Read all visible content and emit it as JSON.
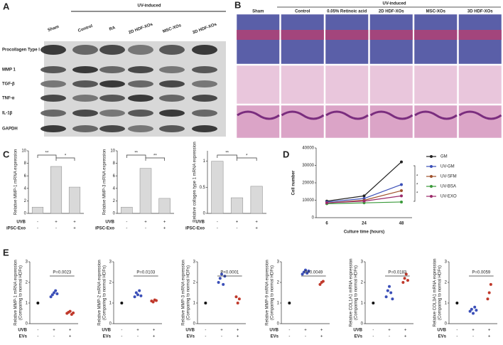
{
  "letters": [
    "A",
    "B",
    "C",
    "D",
    "E"
  ],
  "panel_a": {
    "group_label": "UV-induced",
    "columns": [
      "Sham",
      "Control",
      "RA",
      "2D HDF-XOs",
      "MSC-XOs",
      "3D HDF-XOs"
    ],
    "rows": [
      "Procollagen Type I",
      "MMP 1",
      "TGF-β",
      "TNF-α",
      "IL-1β",
      "GAPDH"
    ]
  },
  "panel_b": {
    "group_label": "UV-induced",
    "columns": [
      "Sham",
      "Control",
      "0.05% Retinoic acid",
      "2D HDF-XOs",
      "MSC-XOs",
      "3D HDF-XOs"
    ]
  },
  "chart_data": [
    {
      "type": "bar",
      "ylabel": "Relative MMP-1 mRNA expression",
      "values": [
        1,
        7.5,
        4.2
      ],
      "color": "#d9d9d9",
      "ylim": [
        0,
        10
      ],
      "yticks": [
        0,
        2,
        4,
        6,
        8,
        10
      ],
      "significance": [
        "**",
        "*"
      ],
      "rows": [
        {
          "label": "UVB",
          "signs": [
            "-",
            "+",
            "+"
          ]
        },
        {
          "label": "iPSC-Exo",
          "signs": [
            "-",
            "-",
            "+"
          ]
        }
      ]
    },
    {
      "type": "bar",
      "ylabel": "Relative MMP-3 mRNA expression",
      "values": [
        1,
        7.2,
        2.4
      ],
      "color": "#d9d9d9",
      "ylim": [
        0,
        10
      ],
      "yticks": [
        0,
        2,
        4,
        6,
        8,
        10
      ],
      "significance": [
        "**",
        "**"
      ],
      "rows": [
        {
          "label": "UVB",
          "signs": [
            "-",
            "+",
            "+"
          ]
        },
        {
          "label": "iPSC-Exo",
          "signs": [
            "-",
            "-",
            "+"
          ]
        }
      ]
    },
    {
      "type": "bar",
      "ylabel": "Relative collagen type 1 mRNA expression",
      "values": [
        1,
        0.3,
        0.52
      ],
      "color": "#d9d9d9",
      "ylim": [
        0,
        1.2
      ],
      "yticks": [
        0,
        0.5,
        1
      ],
      "significance": [
        "**",
        "*"
      ],
      "rows": [
        {
          "label": "UVB",
          "signs": [
            "-",
            "+",
            "+"
          ]
        },
        {
          "label": "iPSC-Exo",
          "signs": [
            "-",
            "-",
            "+"
          ]
        }
      ]
    },
    {
      "type": "line",
      "xlabel": "Culture time (hours)",
      "ylabel": "Cell number",
      "categories": [
        "6",
        "24",
        "48"
      ],
      "ylim": [
        0,
        40000
      ],
      "yticks": [
        0,
        10000,
        20000,
        30000,
        40000
      ],
      "significance": [
        "*",
        "*",
        "*"
      ],
      "series": [
        {
          "name": "GM",
          "color": "#222222",
          "values": [
            9500,
            12500,
            32000
          ]
        },
        {
          "name": "UV-GM",
          "color": "#3b4fb8",
          "values": [
            9000,
            11000,
            19000
          ]
        },
        {
          "name": "UV-SFM",
          "color": "#a0522d",
          "values": [
            8500,
            10000,
            15500
          ]
        },
        {
          "name": "UV-BSA",
          "color": "#3a9a3a",
          "values": [
            8000,
            8500,
            9000
          ]
        },
        {
          "name": "UV-EXO",
          "color": "#9c2a6a",
          "values": [
            8500,
            9500,
            12500
          ]
        }
      ]
    },
    {
      "type": "dot",
      "ylabel": "Relative MMP-1 mRNA expression",
      "ysub": "(Comparing to normal HDFs)",
      "p_value": "P=0.0023",
      "ylim": [
        0,
        3
      ],
      "yticks": [
        0,
        1,
        2,
        3
      ],
      "series": [
        {
          "color": "#111111",
          "values": [
            1
          ]
        },
        {
          "color": "#3b4fb8",
          "values": [
            1.3,
            1.4,
            1.5,
            1.6,
            1.45
          ]
        },
        {
          "color": "#c0392b",
          "values": [
            0.5,
            0.55,
            0.6,
            0.45,
            0.52
          ]
        }
      ],
      "rows": [
        {
          "label": "UVB",
          "signs": [
            "-",
            "+",
            "+"
          ]
        },
        {
          "label": "EVs",
          "signs": [
            "-",
            "-",
            "+"
          ]
        }
      ]
    },
    {
      "type": "dot",
      "ylabel": "Relative MMP-2 mRNA expression",
      "ysub": "(Comparing to normal HDFs)",
      "p_value": "P=0.0103",
      "ylim": [
        0,
        3
      ],
      "yticks": [
        0,
        1,
        2,
        3
      ],
      "series": [
        {
          "color": "#111111",
          "values": [
            1
          ]
        },
        {
          "color": "#3b4fb8",
          "values": [
            1.3,
            1.5,
            1.4,
            1.6,
            1.35
          ]
        },
        {
          "color": "#c0392b",
          "values": [
            1.1,
            1.05,
            1.15,
            1.12
          ]
        }
      ],
      "rows": [
        {
          "label": "UVB",
          "signs": [
            "-",
            "+",
            "+"
          ]
        },
        {
          "label": "EVs",
          "signs": [
            "-",
            "-",
            "+"
          ]
        }
      ]
    },
    {
      "type": "dot",
      "ylabel": "Relative MMP-3 mRNA expression",
      "ysub": "(Comparing to normal HDFs)",
      "p_value": "P<0.0001",
      "ylim": [
        0,
        3
      ],
      "yticks": [
        0,
        1,
        2,
        3
      ],
      "series": [
        {
          "color": "#111111",
          "values": [
            1
          ]
        },
        {
          "color": "#3b4fb8",
          "values": [
            2,
            2.2,
            2.4,
            1.9,
            2.3
          ]
        },
        {
          "color": "#c0392b",
          "values": [
            1.3,
            1,
            1.2
          ]
        }
      ],
      "rows": [
        {
          "label": "UVB",
          "signs": [
            "-",
            "+",
            "+"
          ]
        },
        {
          "label": "EVs",
          "signs": [
            "-",
            "-",
            "+"
          ]
        }
      ]
    },
    {
      "type": "dot",
      "ylabel": "Relative MMP-9 mRNA expression",
      "ysub": "(Comparing to normal HDFs)",
      "p_value": "P=0.0049",
      "ylim": [
        0,
        3
      ],
      "yticks": [
        0,
        1,
        2,
        3
      ],
      "series": [
        {
          "color": "#111111",
          "values": [
            1
          ]
        },
        {
          "color": "#3b4fb8",
          "values": [
            2.4,
            2.5,
            2.6,
            2.45,
            2.55
          ]
        },
        {
          "color": "#c0392b",
          "values": [
            1.9,
            2,
            2.05
          ]
        }
      ],
      "rows": [
        {
          "label": "UVB",
          "signs": [
            "-",
            "+",
            "+"
          ]
        },
        {
          "label": "EVs",
          "signs": [
            "-",
            "-",
            "+"
          ]
        }
      ]
    },
    {
      "type": "dot",
      "ylabel": "Relative COL1A1 mRNA expression",
      "ysub": "(Comparing to normal HDFs)",
      "p_value": "P=0.0183",
      "ylim": [
        0,
        3
      ],
      "yticks": [
        0,
        1,
        2,
        3
      ],
      "series": [
        {
          "color": "#111111",
          "values": [
            1
          ]
        },
        {
          "color": "#3b4fb8",
          "values": [
            1.3,
            1.6,
            1.8,
            1.5,
            1.2
          ]
        },
        {
          "color": "#c0392b",
          "values": [
            2,
            2.2,
            2.4,
            2.1
          ]
        }
      ],
      "rows": [
        {
          "label": "UVB",
          "signs": [
            "-",
            "+",
            "+"
          ]
        },
        {
          "label": "EVs",
          "signs": [
            "-",
            "-",
            "+"
          ]
        }
      ]
    },
    {
      "type": "dot",
      "ylabel": "Relative COL3A1 mRNA expression",
      "ysub": "(Comparing to normal HDFs)",
      "p_value": "P=0.0059",
      "ylim": [
        0,
        3
      ],
      "yticks": [
        0,
        1,
        2,
        3
      ],
      "series": [
        {
          "color": "#111111",
          "values": [
            1
          ]
        },
        {
          "color": "#3b4fb8",
          "values": [
            0.6,
            0.7,
            0.5,
            0.8,
            0.65
          ]
        },
        {
          "color": "#c0392b",
          "values": [
            1.2,
            1.5,
            1.9
          ]
        }
      ],
      "rows": [
        {
          "label": "UVB",
          "signs": [
            "-",
            "+",
            "+"
          ]
        },
        {
          "label": "EVs",
          "signs": [
            "-",
            "-",
            "+"
          ]
        }
      ]
    }
  ]
}
